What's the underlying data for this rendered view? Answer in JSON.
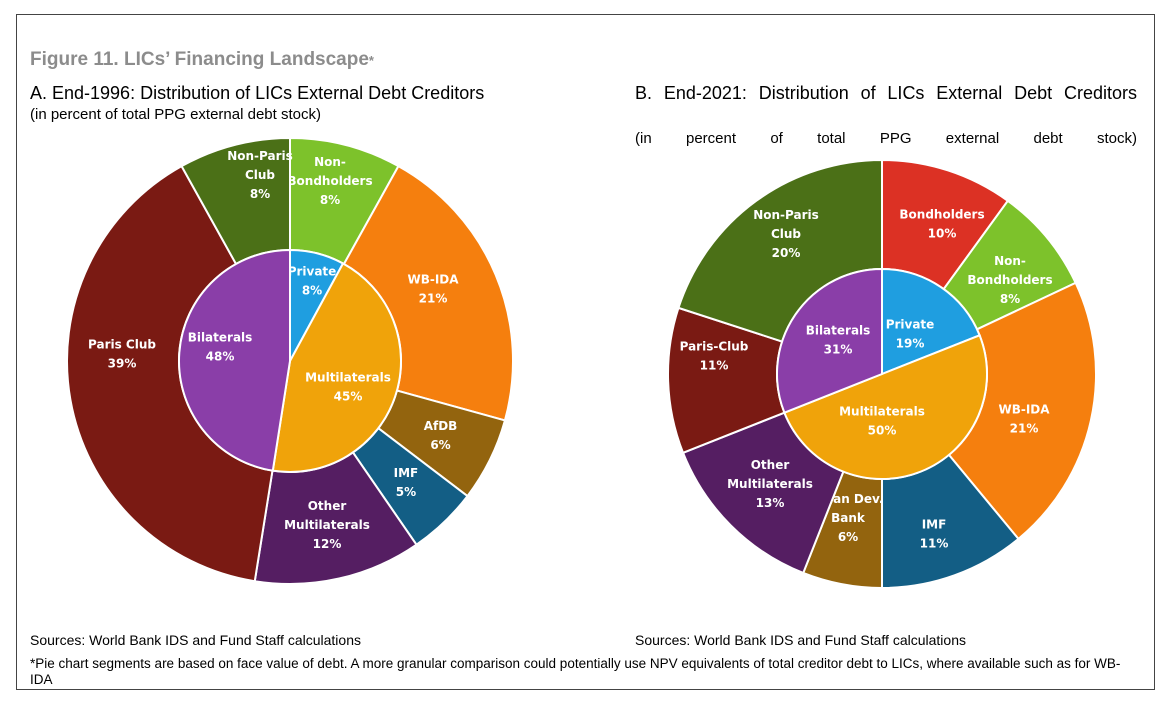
{
  "figure": {
    "title": "Figure 11. LICs’ Financing Landscape",
    "title_mark": "*",
    "footnote": "*Pie chart segments are based on face value of debt. A more granular comparison could potentially use NPV equivalents of total creditor debt to LICs, where available such as for WB-IDA"
  },
  "panel_a": {
    "title": "A. End-1996: Distribution of LICs External Debt Creditors",
    "subtitle": "(in percent of total PPG external debt stock)",
    "source": "Sources: World Bank IDS and Fund Staff calculations"
  },
  "panel_b": {
    "title": "B. End-2021: Distribution of LICs External Debt Creditors",
    "subtitle": "(in percent of total PPG external debt stock)",
    "source": "Sources: World Bank IDS and Fund Staff calculations"
  },
  "chart_data": [
    {
      "type": "pie",
      "variant": "nested-donut",
      "title": "A. End-1996: Distribution of LICs External Debt Creditors",
      "inner": [
        {
          "label": "Private",
          "value": 8,
          "color": "#1f9ee0"
        },
        {
          "label": "Multilaterals",
          "value": 45,
          "color": "#f0a30a"
        },
        {
          "label": "Bilaterals",
          "value": 48,
          "color": "#8a3ea8"
        }
      ],
      "outer": [
        {
          "label": "Non-Bondholders",
          "value": 8,
          "color": "#7dc22b"
        },
        {
          "label": "WB-IDA",
          "value": 21,
          "color": "#f57f0e"
        },
        {
          "label": "AfDB",
          "value": 6,
          "color": "#93640e"
        },
        {
          "label": "IMF",
          "value": 5,
          "color": "#135e85"
        },
        {
          "label": "Other Multilaterals",
          "value": 12,
          "color": "#551e62"
        },
        {
          "label": "Paris Club",
          "value": 39,
          "color": "#7a1a13"
        },
        {
          "label": "Non-Paris Club",
          "value": 8,
          "color": "#4b7017"
        }
      ]
    },
    {
      "type": "pie",
      "variant": "nested-donut",
      "title": "B. End-2021: Distribution of LICs External Debt Creditors",
      "inner": [
        {
          "label": "Private",
          "value": 19,
          "color": "#1f9ee0"
        },
        {
          "label": "Multilaterals",
          "value": 50,
          "color": "#f0a30a"
        },
        {
          "label": "Bilaterals",
          "value": 31,
          "color": "#8a3ea8"
        }
      ],
      "outer": [
        {
          "label": "Bondholders",
          "value": 10,
          "color": "#dc3124"
        },
        {
          "label": "Non-Bondholders",
          "value": 8,
          "color": "#7dc22b"
        },
        {
          "label": "WB-IDA",
          "value": 21,
          "color": "#f57f0e"
        },
        {
          "label": "IMF",
          "value": 11,
          "color": "#135e85"
        },
        {
          "label": "Asian Dev. Bank",
          "value": 6,
          "color": "#93640e"
        },
        {
          "label": "Other Multilaterals",
          "value": 13,
          "color": "#551e62"
        },
        {
          "label": "Paris-Club",
          "value": 11,
          "color": "#7a1a13"
        },
        {
          "label": "Non-Paris Club",
          "value": 20,
          "color": "#4b7017"
        }
      ]
    }
  ]
}
